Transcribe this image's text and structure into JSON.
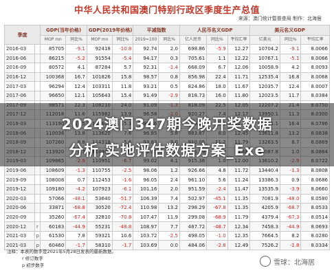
{
  "title": "中华人民共和国澳门特别行政区季度生产总值",
  "source": "来源：澳门统计暨普查局 制作：北海居",
  "headers": {
    "quarter": "季度",
    "gdp_current": "GDP(当年价格)",
    "gdp_2019": "GDP(2019年价格)",
    "deflator": "平减指数",
    "rmb": "人民币名义GDP",
    "usd": "美元名义GDP"
  },
  "subheaders": [
    "MOP mn",
    "同比%",
    "MOP mn",
    "同比%",
    "2019=100",
    "同比%",
    "亿人民币",
    "同比%",
    "平均汇率",
    "亿美元",
    "同比%",
    "平均汇率"
  ],
  "rows": [
    {
      "q": "2016-03",
      "f": "",
      "v": [
        "85705",
        "-9.1",
        "92418",
        "-10.8",
        "92.74",
        "2.0",
        "698.86",
        "-5.9",
        "12.27",
        "10704.2",
        "-9.1",
        "8.0066"
      ]
    },
    {
      "q": "2016-06",
      "f": "",
      "v": [
        "86215",
        "-5.2",
        "91554",
        "-5.4",
        "94.17",
        "0.3",
        "705.61",
        "1.1",
        "12.22",
        "10767.1",
        "-5.1",
        "8.0066"
      ]
    },
    {
      "q": "2016-09",
      "f": "",
      "v": [
        "80572",
        "4.1",
        "87284",
        "5.7",
        "92.31",
        "-1.4",
        "668.09",
        "6.7",
        "12.06",
        "10058.9",
        "4.2",
        "8.0093"
      ]
    },
    {
      "q": "2016-12",
      "f": "",
      "v": [
        "100368",
        "16.7",
        "101826",
        "15.8",
        "98.57",
        "0.8",
        "856.98",
        "22.4",
        "11.71",
        "12535.4",
        "16.8",
        "8.0068"
      ]
    },
    {
      "q": "2017-03",
      "f": "",
      "v": [
        "96294",
        "12.4",
        "103311",
        "11.8",
        "93.21",
        "0.5",
        "824.86",
        "18.0",
        "11.67",
        "12035.7",
        "12.4",
        "8.0007"
      ]
    },
    {
      "q": "2017-06",
      "f": "",
      "v": [
        "96650",
        "12.1",
        "105643",
        "15.4",
        "91.49",
        "-2.9",
        "818.73",
        "16.0",
        "11.80",
        "12023.5",
        "11.7",
        "8.0384"
      ]
    },
    {
      "q": "2017-09",
      "f": "",
      "v": [
        "98571",
        "22.3",
        "108210",
        "24.0",
        "91.09",
        "-1.3",
        "818.09",
        "22.5",
        "12.05",
        "12207.2",
        "21.4",
        "8.0750"
      ]
    },
    {
      "q": "2017-12",
      "f": "",
      "v": [
        "112018",
        "11.6",
        "115982",
        "13.9",
        "96.58",
        "-2.0",
        "920.27",
        "7.4",
        "12.17",
        "13950.1",
        "11.3",
        "8.0300"
      ]
    },
    {
      "q": "2018-03",
      "f": "",
      "v": [
        "113190",
        "17.5",
        "118950",
        "15.1",
        "95.16",
        "2.1",
        "905.99",
        "9.8",
        "12.49",
        "14011.1",
        "16.4",
        "8.0786"
      ]
    },
    {
      "q": "2018-06",
      "f": "",
      "v": [
        "110036",
        "13.8",
        "113620",
        "7.6",
        "96.85",
        "5.8",
        "883.87",
        "8.0",
        "12.45",
        "13611.8",
        "13.2",
        "8.0838"
      ]
    },
    {
      "q": "2018-09",
      "f": "",
      "v": [
        "107260",
        "8.8",
        "114318",
        "5.6",
        "93.83",
        "3.0",
        "910.05",
        "11.2",
        "11.79",
        "13263.5",
        "8.7",
        "8.0869"
      ]
    },
    {
      "q": "2018-12",
      "f": "",
      "v": [
        "113920",
        "1.7",
        "114900",
        "-0.9",
        "99.15",
        "2.7",
        "975.39",
        "6.0",
        "11.68",
        "14087.8",
        "1.0",
        "8.0864"
      ]
    },
    {
      "q": "2019-03",
      "f": "",
      "v": [
        "109865",
        "-2.9",
        "110951",
        "-6.7",
        "99.02",
        "4.1",
        "915.38",
        "1.0",
        "12.00",
        "13610.2",
        "-2.9",
        "8.0722"
      ]
    },
    {
      "q": "2019-06",
      "f": "",
      "v": [
        "108609",
        "-1.3",
        "110755",
        "-2.5",
        "98.06",
        "1.2",
        "926.66",
        "4.8",
        "11.72",
        "13440.4",
        "-1.3",
        "8.0808"
      ]
    },
    {
      "q": "2019-09",
      "f": "",
      "v": [
        "108008",
        "0.7",
        "112453",
        "-1.6",
        "96.05",
        "2.4",
        "961.10",
        "5.6",
        "11.24",
        "13386.3",
        "0.9",
        "8.0686"
      ]
    },
    {
      "q": "2019-12",
      "f": "",
      "v": [
        "109180",
        "-4.2",
        "107923",
        "-6.1",
        "101.16",
        "2.0",
        "951.59",
        "-2.4",
        "11.47",
        "13535.9",
        "-3.9",
        "8.0660"
      ]
    },
    {
      "q": "2020-03",
      "f": "",
      "v": [
        "57066",
        "-48.1",
        "53640",
        "-51.7",
        "106.39",
        "7.4",
        "502.97",
        "-45.1",
        "11.35",
        "7081.9",
        "-48.0",
        "8.0580"
      ]
    },
    {
      "q": "2020-06",
      "f": "",
      "v": [
        "33871",
        "-68.8",
        "30520",
        "-72.4",
        "110.98",
        "13.2",
        "298.29",
        "-67.8",
        "11.35",
        "4205.9",
        "-68.7",
        "8.0533"
      ]
    },
    {
      "q": "2020-09",
      "f": "",
      "v": [
        "35260",
        "-67.4",
        "32810",
        "-70.8",
        "107.47",
        "11.9",
        "299.08",
        "-68.9",
        "11.79",
        "4379.4",
        "-67.3",
        "8.0514"
      ]
    },
    {
      "q": "2020-12",
      "f": "r",
      "v": [
        "60183",
        "-44.9",
        "55231",
        "-48.8",
        "108.97",
        "7.7",
        "487.72",
        "-48.7",
        "12.34",
        "7458.3",
        "-44.9",
        "8.0693"
      ]
    },
    {
      "q": "2021-03",
      "f": "p",
      "v": [
        "61530",
        "7.8",
        "59321",
        "10.6",
        "103.72",
        "-2.5",
        "498.05",
        "-1.0",
        "12.35",
        "7664.5",
        "8.2",
        "8.0280"
      ]
    },
    {
      "q": "2021-03",
      "f": "p",
      "v": [
        "60460",
        "-1.7",
        "58310",
        "-1.7",
        "103.69",
        "0.0",
        "484.06",
        "-2.8",
        "12.49",
        "7526.2",
        "-1.8",
        "8.0334"
      ]
    }
  ],
  "notes": [
    "注释：本表的数字是2021年5月28日发表的最新数据。",
    "r 修订数字",
    "p 初步数字"
  ],
  "overlay": {
    "line1": "2024澳门347期今晚开奖数据",
    "line2": "分析,实地评估数据方案_Exe"
  },
  "watermark": "雪球：北海居"
}
